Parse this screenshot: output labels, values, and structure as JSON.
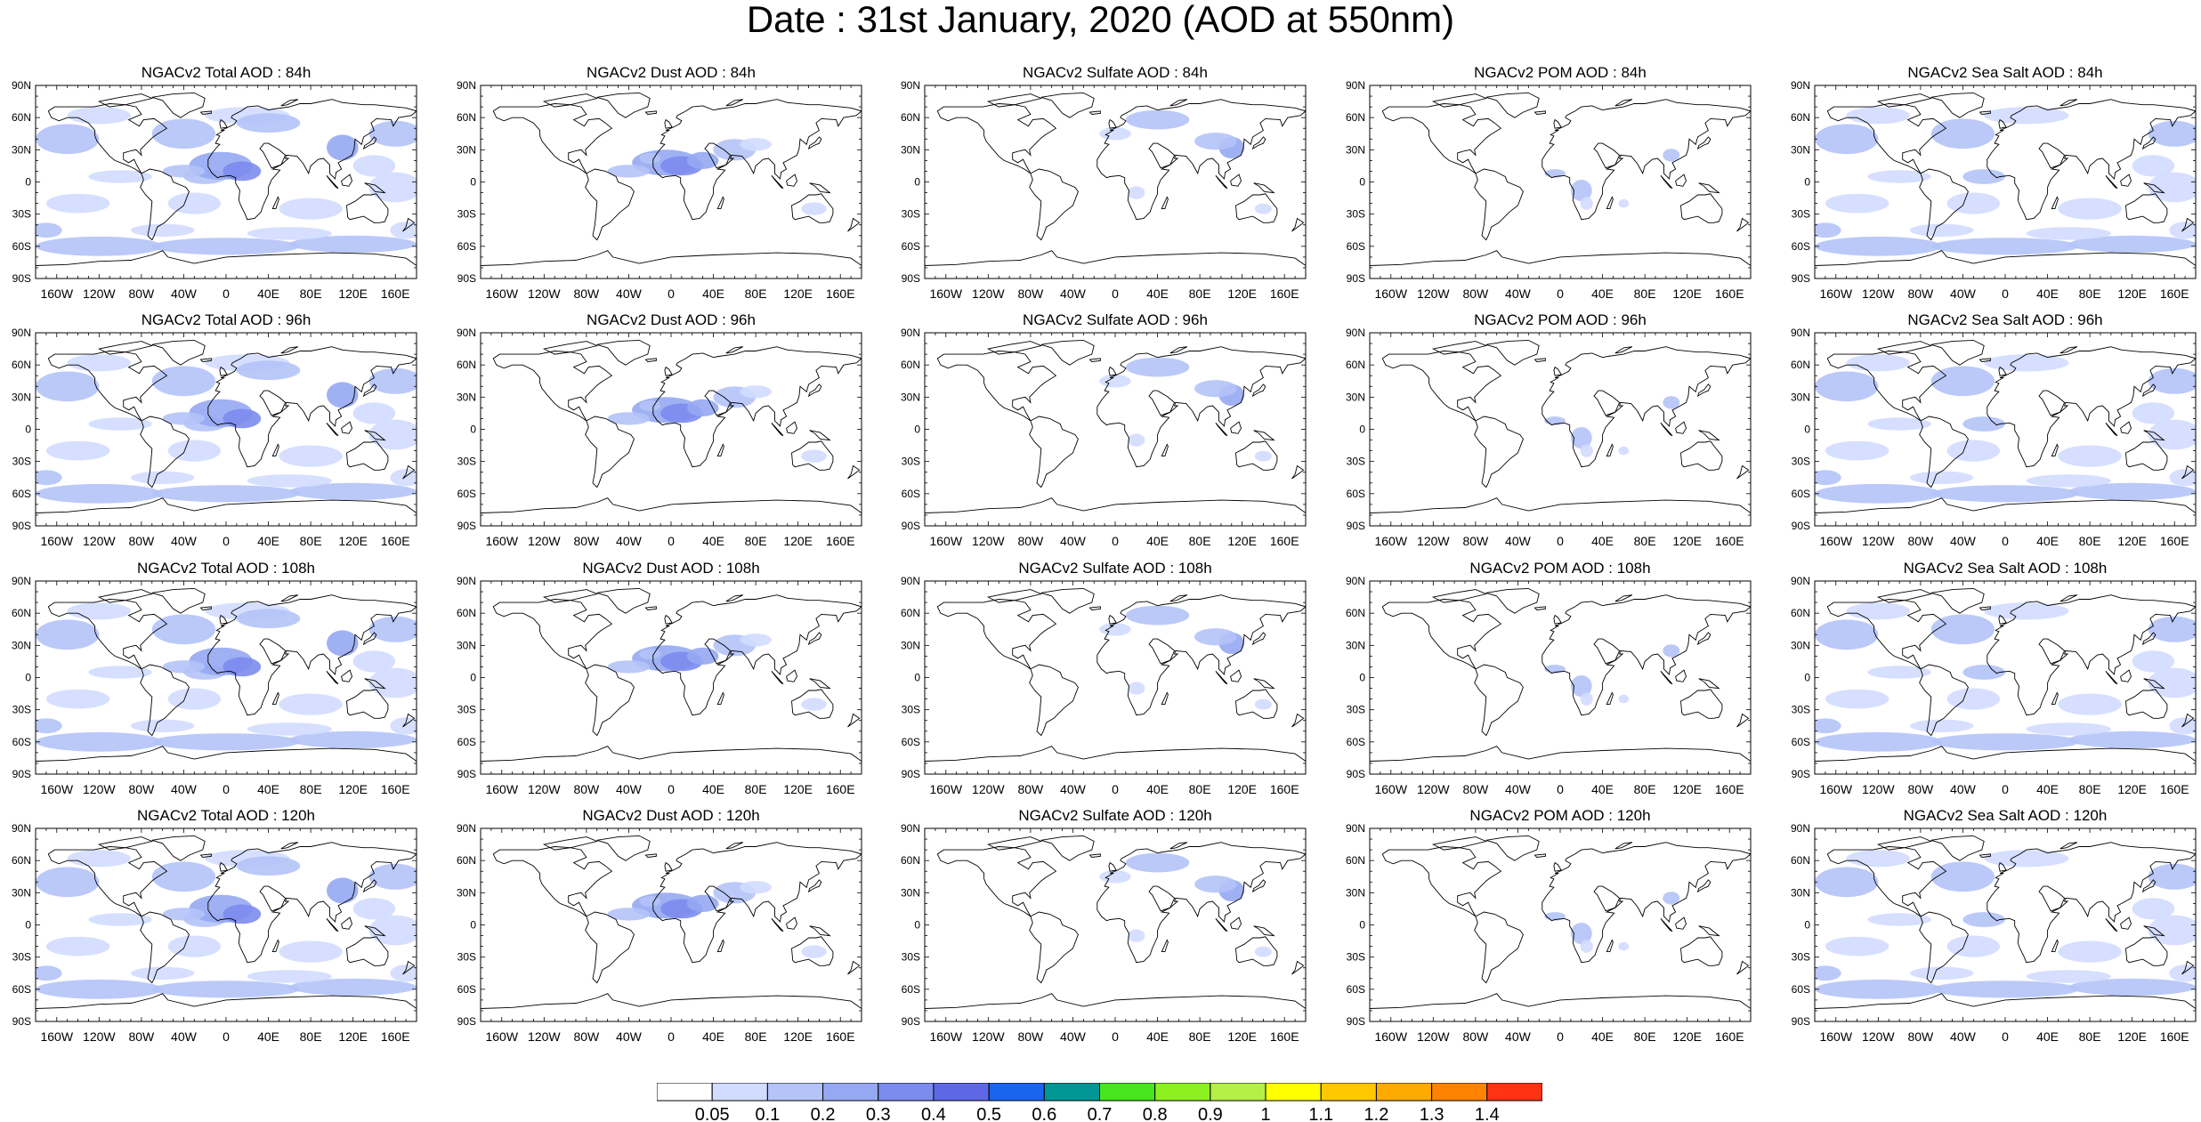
{
  "title": "Date : 31st January, 2020 (AOD at 550nm)",
  "panel_titles": [
    [
      "NGACv2 Total AOD : 84h",
      "NGACv2 Dust AOD : 84h",
      "NGACv2 Sulfate AOD : 84h",
      "NGACv2 POM AOD : 84h",
      "NGACv2 Sea Salt AOD : 84h"
    ],
    [
      "NGACv2 Total AOD : 96h",
      "NGACv2 Dust AOD : 96h",
      "NGACv2 Sulfate AOD : 96h",
      "NGACv2 POM AOD : 96h",
      "NGACv2 Sea Salt AOD : 96h"
    ],
    [
      "NGACv2 Total AOD : 108h",
      "NGACv2 Dust AOD : 108h",
      "NGACv2 Sulfate AOD : 108h",
      "NGACv2 POM AOD : 108h",
      "NGACv2 Sea Salt AOD : 108h"
    ],
    [
      "NGACv2 Total AOD : 120h",
      "NGACv2 Dust AOD : 120h",
      "NGACv2 Sulfate AOD : 120h",
      "NGACv2 POM AOD : 120h",
      "NGACv2 Sea Salt  AOD : 120h"
    ]
  ],
  "lat_ticks": [
    "90N",
    "60N",
    "30N",
    "0",
    "30S",
    "60S",
    "90S"
  ],
  "lon_ticks": [
    "160W",
    "120W",
    "80W",
    "40W",
    "0",
    "40E",
    "80E",
    "120E",
    "160E"
  ],
  "lon_tick_values": [
    -160,
    -120,
    -80,
    -40,
    0,
    40,
    80,
    120,
    160
  ],
  "lat_tick_values": [
    90,
    60,
    30,
    0,
    -30,
    -60,
    -90
  ],
  "colorbar": {
    "labels": [
      "0.05",
      "0.1",
      "0.2",
      "0.3",
      "0.4",
      "0.5",
      "0.6",
      "0.7",
      "0.8",
      "0.9",
      "1",
      "1.1",
      "1.2",
      "1.3",
      "1.4"
    ],
    "colors": [
      "#ffffff",
      "#d2dcff",
      "#b4c3f8",
      "#96a8f2",
      "#7c8cee",
      "#5e68e6",
      "#1a64f0",
      "#009696",
      "#46e61e",
      "#8cf01e",
      "#b4f046",
      "#ffff00",
      "#ffc800",
      "#ffaa00",
      "#ff8200",
      "#ff3214"
    ]
  },
  "fields": [
    "total",
    "dust",
    "sulfate",
    "pom",
    "seasalt"
  ]
}
